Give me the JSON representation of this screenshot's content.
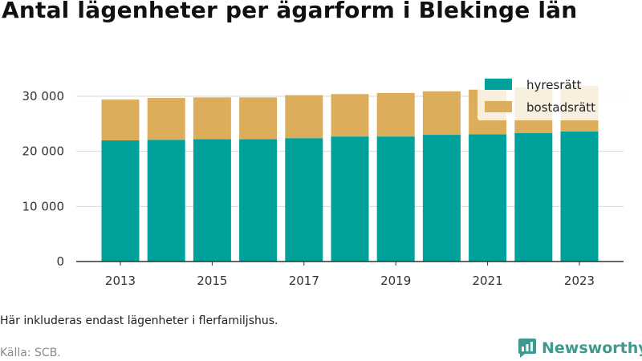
{
  "title": "Antal lägenheter per ägarform i Blekinge län",
  "note": "Här inkluderas endast lägenheter i flerfamiljshus.",
  "source": "Källa: SCB.",
  "brand": {
    "name": "Newsworthy",
    "icon": "bar-chart-logo-icon"
  },
  "colors": {
    "hyresratt": "#00a19a",
    "bostadsratt": "#dcae5c",
    "grid": "#d9d9d9",
    "axis": "#333333"
  },
  "chart_data": {
    "type": "bar",
    "stacked": true,
    "title": "Antal lägenheter per ägarform i Blekinge län",
    "xlabel": "",
    "ylabel": "",
    "categories": [
      "2013",
      "2014",
      "2015",
      "2016",
      "2017",
      "2018",
      "2019",
      "2020",
      "2021",
      "2022",
      "2023"
    ],
    "x_tick_labels": [
      "2013",
      "2015",
      "2017",
      "2019",
      "2021",
      "2023"
    ],
    "y_ticks": [
      0,
      10000,
      20000,
      30000
    ],
    "y_tick_labels": [
      "0",
      "10 000",
      "20 000",
      "30 000"
    ],
    "ylim": [
      0,
      32000
    ],
    "grid": true,
    "legend_position": "top-right",
    "series": [
      {
        "name": "hyresrätt",
        "color": "#00a19a",
        "values": [
          22000,
          22100,
          22200,
          22200,
          22400,
          22700,
          22700,
          23000,
          23100,
          23300,
          23600
        ]
      },
      {
        "name": "bostadsrätt",
        "color": "#dcae5c",
        "values": [
          7400,
          7600,
          7600,
          7600,
          7800,
          7700,
          7900,
          7900,
          8100,
          8300,
          8300
        ]
      }
    ]
  }
}
